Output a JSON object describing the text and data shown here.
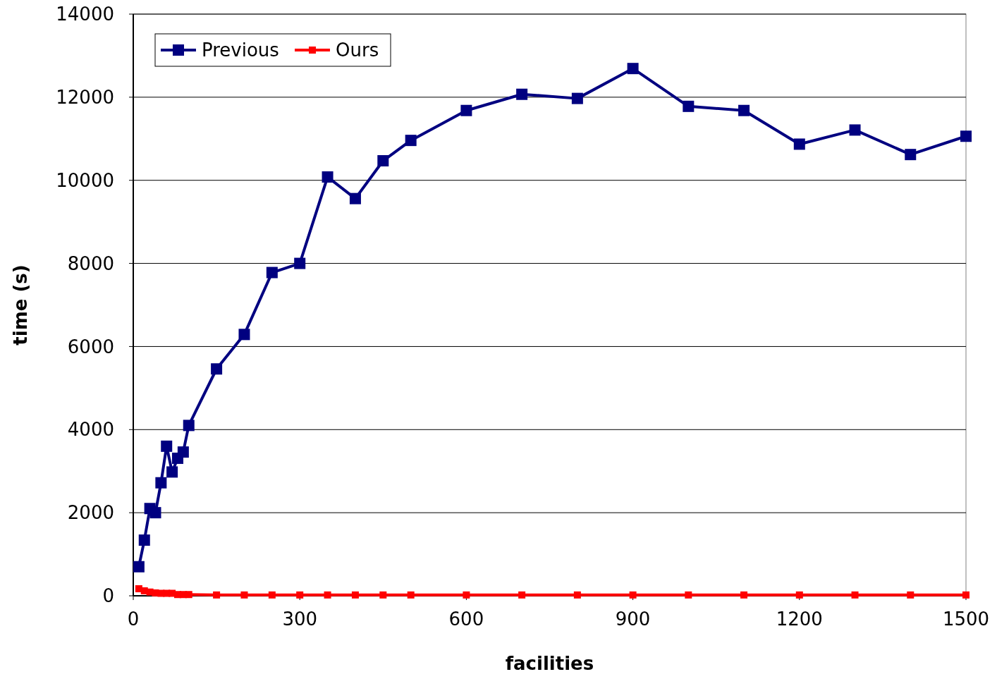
{
  "chart_data": {
    "type": "line",
    "xlabel": "facilities",
    "ylabel": "time (s)",
    "x": [
      10,
      20,
      30,
      40,
      50,
      60,
      70,
      80,
      90,
      100,
      150,
      200,
      250,
      300,
      350,
      400,
      450,
      500,
      600,
      700,
      800,
      900,
      1000,
      1100,
      1200,
      1300,
      1400,
      1500
    ],
    "series": [
      {
        "name": "Previous",
        "color": "#000080",
        "values": [
          700,
          1340,
          2100,
          2000,
          2720,
          3600,
          2980,
          3310,
          3460,
          4100,
          5460,
          6290,
          7780,
          8000,
          10080,
          9560,
          10470,
          10960,
          11680,
          12070,
          11970,
          12690,
          11780,
          11680,
          10870,
          11210,
          10620,
          11060
        ]
      },
      {
        "name": "Ours",
        "color": "#ff0000",
        "values": [
          170,
          120,
          90,
          70,
          60,
          60,
          60,
          30,
          30,
          30,
          20,
          20,
          20,
          20,
          20,
          20,
          20,
          20,
          20,
          20,
          20,
          20,
          20,
          20,
          20,
          20,
          20,
          20
        ]
      }
    ],
    "xlim": [
      0,
      1500
    ],
    "xticks": [
      0,
      300,
      600,
      900,
      1200,
      1500
    ],
    "ylim": [
      0,
      14000
    ],
    "yticks": [
      0,
      2000,
      4000,
      6000,
      8000,
      10000,
      12000,
      14000
    ],
    "grid": "y",
    "legend": "top left",
    "marker": "square",
    "line_style": "solid"
  }
}
